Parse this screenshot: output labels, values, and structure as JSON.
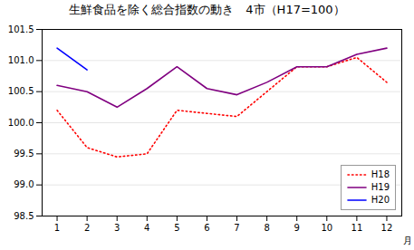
{
  "chart_data": {
    "type": "line",
    "title": "生鮮食品を除く総合指数の動き　4市（H17=100）",
    "x_label": "月",
    "x": [
      1,
      2,
      3,
      4,
      5,
      6,
      7,
      8,
      9,
      10,
      11,
      12
    ],
    "series": [
      {
        "name": "H18",
        "color": "#ff0000",
        "line_style": "dotted",
        "values": [
          100.2,
          99.6,
          99.45,
          99.5,
          100.2,
          100.15,
          100.1,
          100.5,
          100.9,
          100.9,
          101.05,
          100.65
        ]
      },
      {
        "name": "H19",
        "color": "#800080",
        "line_style": "solid",
        "values": [
          100.6,
          100.5,
          100.25,
          100.55,
          100.9,
          100.55,
          100.45,
          100.65,
          100.9,
          100.9,
          101.1,
          101.2
        ]
      },
      {
        "name": "H20",
        "color": "#0000ff",
        "line_style": "solid",
        "values": [
          101.2,
          100.85,
          null,
          null,
          null,
          null,
          null,
          null,
          null,
          null,
          null,
          null
        ]
      }
    ],
    "xlim": [
      0.5,
      12.5
    ],
    "xticks": [
      1,
      2,
      3,
      4,
      5,
      6,
      7,
      8,
      9,
      10,
      11,
      12
    ],
    "ylim": [
      98.5,
      101.5
    ],
    "yticks": [
      98.5,
      {
        "value": 99,
        "label": "99.0"
      },
      99.5,
      {
        "value": 100,
        "label": "100.0"
      },
      100.5,
      {
        "value": 101,
        "label": "101.0"
      },
      101.5
    ],
    "grid": "y",
    "legend": "lower right"
  }
}
